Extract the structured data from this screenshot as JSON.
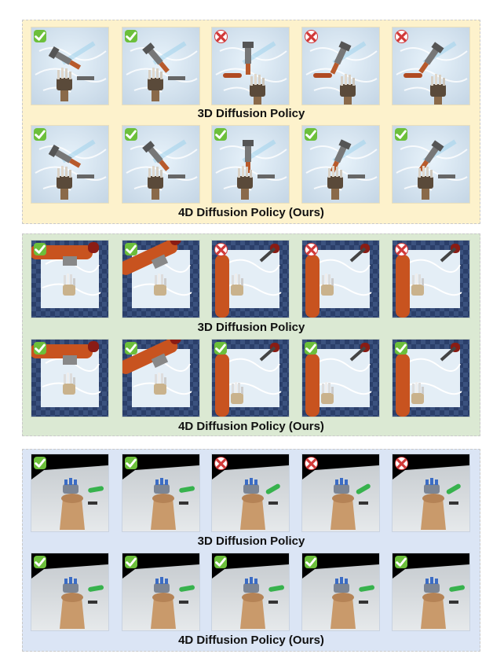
{
  "panels": [
    {
      "theme": "yellow",
      "env": "hand-tool",
      "rows": [
        {
          "caption": "3D Diffusion Policy",
          "results": [
            "success",
            "success",
            "failure",
            "failure",
            "failure"
          ]
        },
        {
          "caption": "4D Diffusion Policy (Ours)",
          "results": [
            "success",
            "success",
            "success",
            "success",
            "success"
          ]
        }
      ]
    },
    {
      "theme": "green",
      "env": "arm-board",
      "rows": [
        {
          "caption": "3D Diffusion Policy",
          "results": [
            "success",
            "success",
            "failure",
            "failure",
            "failure"
          ]
        },
        {
          "caption": "4D Diffusion Policy (Ours)",
          "results": [
            "success",
            "success",
            "success",
            "success",
            "success"
          ]
        }
      ]
    },
    {
      "theme": "blue",
      "env": "table-hand",
      "rows": [
        {
          "caption": "3D Diffusion Policy",
          "results": [
            "success",
            "success",
            "failure",
            "failure",
            "failure"
          ]
        },
        {
          "caption": "4D Diffusion Policy (Ours)",
          "results": [
            "success",
            "success",
            "success",
            "success",
            "success"
          ]
        }
      ]
    }
  ],
  "icons": {
    "success": "check-icon",
    "failure": "cross-circle-icon"
  },
  "colors": {
    "success": "#6cbf3b",
    "failure": "#d23a3a"
  }
}
